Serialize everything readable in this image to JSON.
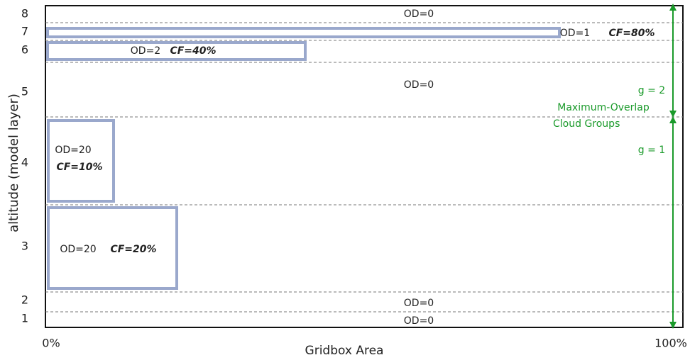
{
  "y_axis": {
    "title": "altitude (model layer)",
    "layer_labels": [
      "8",
      "7",
      "6",
      "5",
      "4",
      "3",
      "2",
      "1"
    ]
  },
  "x_axis": {
    "title": "Gridbox Area",
    "start_label": "0%",
    "end_label": "100%"
  },
  "layers": [
    {
      "od": "OD=0"
    },
    {
      "od": "OD=1",
      "cf": "CF=80%"
    },
    {
      "od": "OD=2",
      "cf": "CF=40%"
    },
    {
      "od": "OD=0"
    },
    {
      "od": "OD=20",
      "cf": "CF=10%"
    },
    {
      "od": "OD=20",
      "cf": "CF=20%"
    },
    {
      "od": "OD=0"
    },
    {
      "od": "OD=0"
    }
  ],
  "groups": {
    "upper": "g = 2",
    "lower": "g = 1",
    "caption_line1": "Maximum-Overlap",
    "caption_line2": "Cloud Groups"
  }
}
